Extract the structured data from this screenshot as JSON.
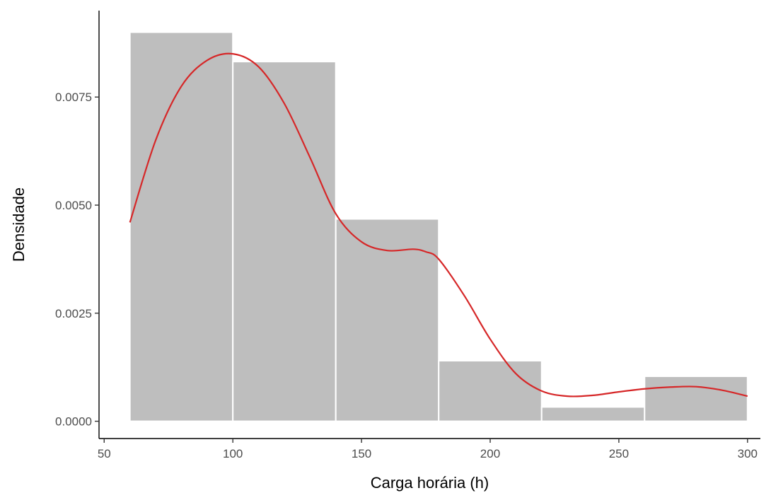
{
  "chart_data": {
    "type": "bar",
    "title": "",
    "xlabel": "Carga horária (h)",
    "ylabel": "Densidade",
    "xlim": [
      48,
      305
    ],
    "ylim": [
      -0.0004,
      0.0095
    ],
    "x_ticks": [
      50,
      100,
      150,
      200,
      250,
      300
    ],
    "x_tick_labels": [
      "50",
      "100",
      "150",
      "200",
      "250",
      "300"
    ],
    "y_ticks": [
      0.0,
      0.0025,
      0.005,
      0.0075
    ],
    "y_tick_labels": [
      "0.0000",
      "0.0025",
      "0.0050",
      "0.0075"
    ],
    "grid": false,
    "legend": "none",
    "histogram": {
      "bin_edges": [
        60,
        100,
        140,
        180,
        220,
        260,
        300
      ],
      "densities": [
        0.009,
        0.00832,
        0.00468,
        0.0014,
        0.00033,
        0.00104
      ],
      "fill": "#bebebe",
      "border": "#ffffff"
    },
    "density_curve": {
      "color": "#d62728",
      "x": [
        60,
        70,
        80,
        90,
        100,
        110,
        120,
        130,
        140,
        150,
        160,
        170,
        175,
        180,
        190,
        200,
        210,
        220,
        230,
        240,
        250,
        260,
        270,
        280,
        290,
        300
      ],
      "y": [
        0.0046,
        0.0065,
        0.00775,
        0.00835,
        0.0085,
        0.0082,
        0.00735,
        0.0061,
        0.0048,
        0.00415,
        0.00395,
        0.00398,
        0.00392,
        0.00375,
        0.0029,
        0.0019,
        0.0011,
        0.0007,
        0.00058,
        0.0006,
        0.00068,
        0.00075,
        0.00079,
        0.0008,
        0.00072,
        0.00058
      ]
    }
  }
}
